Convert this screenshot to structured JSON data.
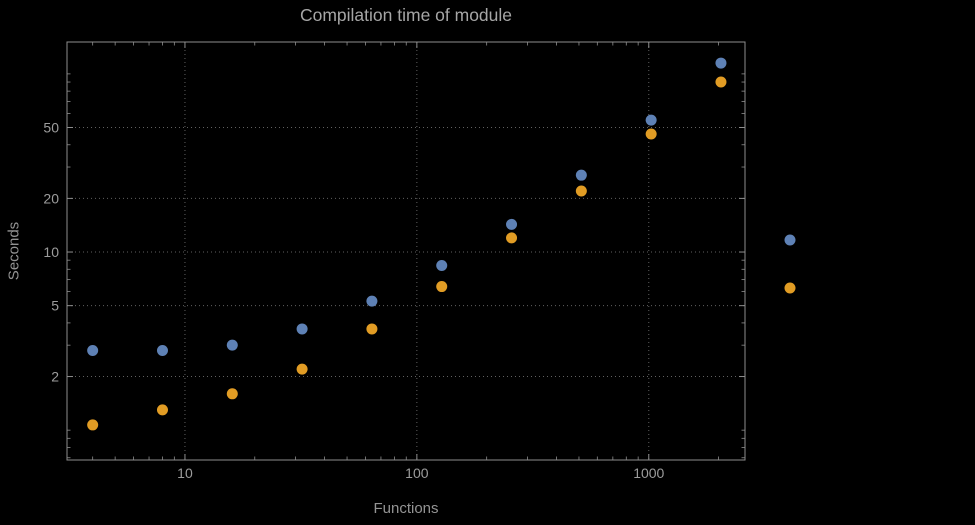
{
  "chart_data": {
    "type": "scatter",
    "title": "Compilation time of module",
    "xlabel": "Functions",
    "ylabel": "Seconds",
    "x_scale": "log",
    "y_scale": "log",
    "xlim": [
      3.1,
      2600
    ],
    "ylim": [
      0.68,
      151
    ],
    "grid": "dotted",
    "x": [
      4,
      8,
      16,
      32,
      64,
      128,
      256,
      512,
      1024,
      2048
    ],
    "series": [
      {
        "name": "blue",
        "color": "#5e81b5",
        "values": [
          2.8,
          2.8,
          3.0,
          3.7,
          5.3,
          8.4,
          14.3,
          27,
          55,
          115
        ]
      },
      {
        "name": "orange",
        "color": "#e19c24",
        "values": [
          1.07,
          1.3,
          1.6,
          2.2,
          3.7,
          6.4,
          12,
          22,
          46,
          90
        ]
      }
    ],
    "xticks": [
      {
        "value": 10,
        "label": "10"
      },
      {
        "value": 100,
        "label": "100"
      },
      {
        "value": 1000,
        "label": "1000"
      }
    ],
    "yticks": [
      {
        "value": 2,
        "label": "2"
      },
      {
        "value": 5,
        "label": "5"
      },
      {
        "value": 10,
        "label": "10"
      },
      {
        "value": 20,
        "label": "20"
      },
      {
        "value": 50,
        "label": "50"
      }
    ],
    "legend": {
      "position": "right-outside",
      "entries": [
        {
          "name": "blue",
          "color": "#5e81b5"
        },
        {
          "name": "orange",
          "color": "#e19c24"
        }
      ]
    },
    "colors": {
      "background": "#000000",
      "frame": "#8e8e8e",
      "grid": "#606060",
      "tick_labels": "#9c9c9c",
      "title": "#a6a6a6",
      "axis_labels": "#939393"
    }
  }
}
